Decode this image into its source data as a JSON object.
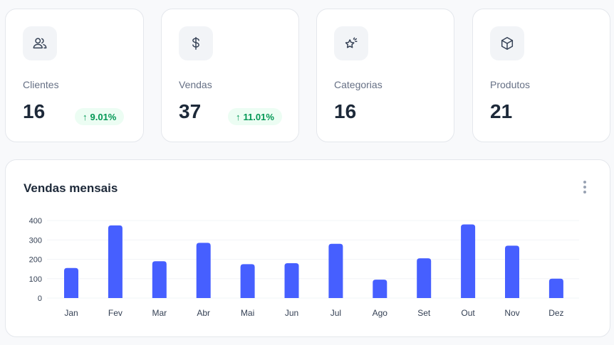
{
  "stats": [
    {
      "label": "Clientes",
      "value": "16",
      "icon": "users-icon",
      "change": "9.01%",
      "trend": "up"
    },
    {
      "label": "Vendas",
      "value": "37",
      "icon": "dollar-icon",
      "change": "11.01%",
      "trend": "up"
    },
    {
      "label": "Categorias",
      "value": "16",
      "icon": "star-sparkle-icon"
    },
    {
      "label": "Produtos",
      "value": "21",
      "icon": "box-icon"
    }
  ],
  "badge_arrow": "↑",
  "colors": {
    "accent": "#465fff",
    "success": "#039855",
    "success_bg": "#ecfdf3",
    "text": "#1d2939",
    "muted": "#667085"
  },
  "chart": {
    "title": "Vendas mensais",
    "menu_icon": "more-vertical-icon"
  },
  "chart_data": {
    "type": "bar",
    "title": "Vendas mensais",
    "categories": [
      "Jan",
      "Fev",
      "Mar",
      "Abr",
      "Mai",
      "Jun",
      "Jul",
      "Ago",
      "Set",
      "Out",
      "Nov",
      "Dez"
    ],
    "values": [
      155,
      375,
      190,
      285,
      175,
      180,
      280,
      95,
      205,
      380,
      270,
      100
    ],
    "yticks": [
      0,
      100,
      200,
      300,
      400
    ],
    "ylim": [
      0,
      400
    ],
    "xlabel": "",
    "ylabel": "",
    "grid": true,
    "legend": "none",
    "color": "#465fff"
  }
}
